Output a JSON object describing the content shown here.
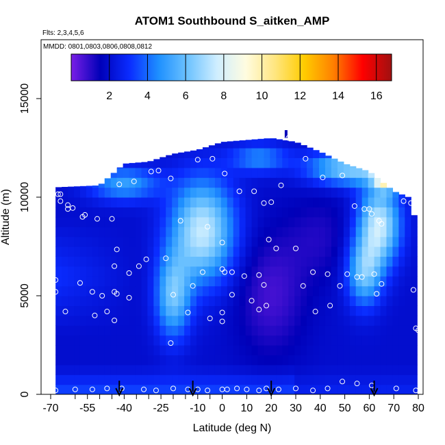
{
  "chart_data": {
    "type": "heatmap",
    "title": "ATOM1 Southbound S_aitken_AMP",
    "flights_label": "Flts: 2,3,4,5,6",
    "dates_label": "MMDD: 0801,0803,0806,0808,0812",
    "xlabel": "Latitude (deg N)",
    "ylabel": "Altitude (m)",
    "xlim": [
      -70,
      80
    ],
    "ylim": [
      0,
      17500
    ],
    "x_ticks": [
      -70,
      -55,
      -40,
      -25,
      -10,
      0,
      10,
      20,
      30,
      40,
      50,
      60,
      70,
      80
    ],
    "x_tick_labels": [
      "-70",
      "-55",
      "-40",
      "-25",
      "-10",
      "0",
      "10",
      "20",
      "30",
      "40",
      "50",
      "60",
      "70",
      "80"
    ],
    "minor_x_ticks": [
      -60,
      -50,
      -45,
      -35,
      -30,
      -20,
      -15,
      -5
    ],
    "y_ticks": [
      0,
      5000,
      10000,
      15000
    ],
    "y_tick_labels": [
      "0",
      "5000",
      "10000",
      "15000"
    ],
    "colorbar": {
      "ticks": [
        2,
        4,
        6,
        8,
        10,
        12,
        14,
        16
      ],
      "tick_labels": [
        "2",
        "4",
        "6",
        "8",
        "10",
        "12",
        "14",
        "16"
      ],
      "range": [
        0,
        16.8
      ],
      "colors": [
        "#7a1fe6",
        "#0000b8",
        "#0a2cff",
        "#1e90ff",
        "#6ec3ff",
        "#cfeeff",
        "#fffce0",
        "#ffe680",
        "#ffcc00",
        "#ff8000",
        "#ff0000",
        "#a01010"
      ]
    },
    "grid": false,
    "legend": "colorbar top",
    "flight_markers": [
      -42,
      -12,
      20,
      62
    ],
    "observations": [
      [
        -66,
        10150
      ],
      [
        -67,
        10150
      ],
      [
        -66,
        9800
      ],
      [
        -63,
        9600
      ],
      [
        -63,
        9400
      ],
      [
        -61,
        9450
      ],
      [
        -57,
        9000
      ],
      [
        -56,
        9100
      ],
      [
        -51,
        8900
      ],
      [
        -45,
        8900
      ],
      [
        -44,
        11550
      ],
      [
        -42,
        10650
      ],
      [
        -36,
        10800
      ],
      [
        -29,
        11300
      ],
      [
        -26,
        11350
      ],
      [
        -21,
        10950
      ],
      [
        -10,
        11900
      ],
      [
        -4,
        11950
      ],
      [
        1,
        11200
      ],
      [
        7,
        10300
      ],
      [
        13,
        10300
      ],
      [
        17,
        9700
      ],
      [
        20,
        9750
      ],
      [
        24,
        10600
      ],
      [
        27,
        13000
      ],
      [
        34,
        11950
      ],
      [
        41,
        11000
      ],
      [
        49,
        11100
      ],
      [
        54,
        9550
      ],
      [
        58,
        9400
      ],
      [
        60,
        9400
      ],
      [
        61,
        9150
      ],
      [
        64,
        8800
      ],
      [
        65,
        8650
      ],
      [
        66,
        11250
      ],
      [
        74,
        9800
      ],
      [
        77,
        9700
      ],
      [
        -17,
        8800
      ],
      [
        -6,
        8500
      ],
      [
        0,
        7700
      ],
      [
        19,
        7850
      ],
      [
        22,
        7400
      ],
      [
        30,
        7400
      ],
      [
        -43,
        7350
      ],
      [
        -31,
        6850
      ],
      [
        -34,
        6500
      ],
      [
        -23,
        6900
      ],
      [
        -8,
        6200
      ],
      [
        0,
        6350
      ],
      [
        1,
        6200
      ],
      [
        4,
        6200
      ],
      [
        9,
        6000
      ],
      [
        15,
        6050
      ],
      [
        17,
        5550
      ],
      [
        -12,
        5500
      ],
      [
        -38,
        6150
      ],
      [
        -68,
        5800
      ],
      [
        -58,
        5650
      ],
      [
        -44,
        6500
      ],
      [
        33,
        5500
      ],
      [
        37,
        6200
      ],
      [
        43,
        6100
      ],
      [
        48,
        5500
      ],
      [
        51,
        6100
      ],
      [
        55,
        5950
      ],
      [
        57,
        5950
      ],
      [
        62,
        6100
      ],
      [
        65,
        5600
      ],
      [
        63,
        5100
      ],
      [
        78,
        5300
      ],
      [
        -68,
        5200
      ],
      [
        -53,
        5200
      ],
      [
        -49,
        5000
      ],
      [
        -44,
        5200
      ],
      [
        -43,
        5100
      ],
      [
        -38,
        4900
      ],
      [
        -20,
        5050
      ],
      [
        4,
        5050
      ],
      [
        12,
        4750
      ],
      [
        15,
        4300
      ],
      [
        18,
        4500
      ],
      [
        38,
        4200
      ],
      [
        44,
        4500
      ],
      [
        -64,
        4200
      ],
      [
        -52,
        4000
      ],
      [
        -47,
        4200
      ],
      [
        -44,
        3750
      ],
      [
        -14,
        4150
      ],
      [
        -5,
        3850
      ],
      [
        0,
        4150
      ],
      [
        0,
        3700
      ],
      [
        -21,
        2600
      ],
      [
        79,
        3350
      ],
      [
        80,
        3250
      ],
      [
        -68,
        200
      ],
      [
        -60,
        250
      ],
      [
        -53,
        250
      ],
      [
        -47,
        300
      ],
      [
        -41,
        300
      ],
      [
        -32,
        250
      ],
      [
        -27,
        200
      ],
      [
        -20,
        300
      ],
      [
        -14,
        250
      ],
      [
        -10,
        250
      ],
      [
        -6,
        200
      ],
      [
        0,
        250
      ],
      [
        2,
        250
      ],
      [
        6,
        300
      ],
      [
        10,
        250
      ],
      [
        15,
        200
      ],
      [
        18,
        300
      ],
      [
        23,
        250
      ],
      [
        30,
        300
      ],
      [
        37,
        200
      ],
      [
        43,
        300
      ],
      [
        49,
        650
      ],
      [
        55,
        550
      ],
      [
        61,
        450
      ],
      [
        71,
        300
      ],
      [
        79,
        200
      ]
    ]
  }
}
